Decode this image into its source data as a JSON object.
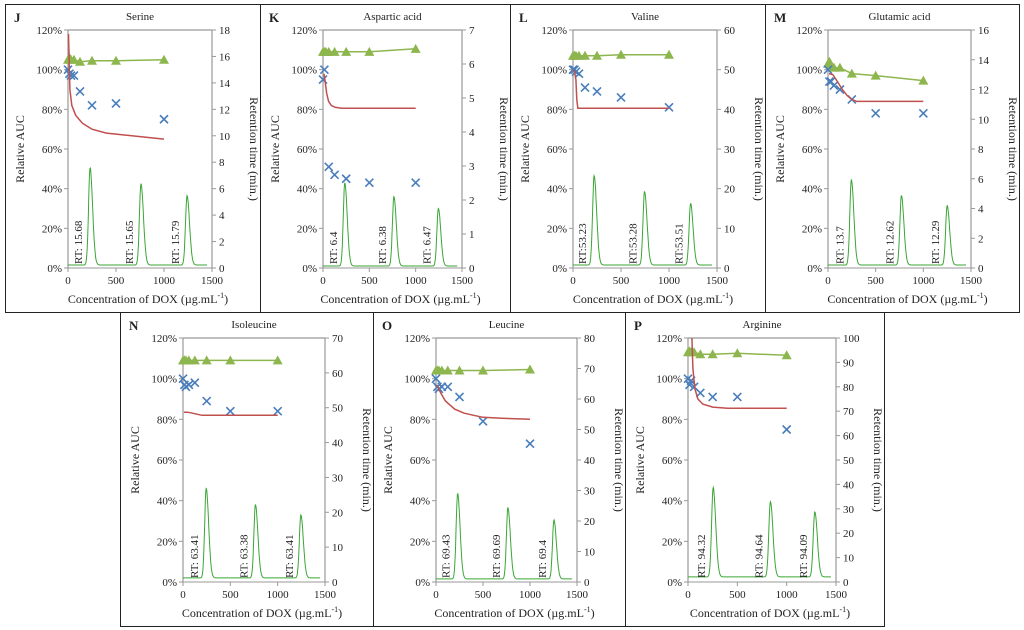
{
  "figure": {
    "shared": {
      "xlabel": "Concentration of DOX (µg.mL",
      "xlabel_sup": "-1",
      "xlabel_close": ")",
      "ylabel_left": "Relative AUC",
      "ylabel_right": "Retention time (min.)",
      "x_ticks": [
        "0",
        "500",
        "1000",
        "1500"
      ],
      "y_left_ticks": [
        "0%",
        "20%",
        "40%",
        "60%",
        "80%",
        "100%",
        "120%"
      ],
      "colors": {
        "triangles": "#8db64e",
        "triangle_line": "#8db64e",
        "crosses": "#4a7ebb",
        "fit_line": "#c0504d",
        "chromatogram": "#3aa635",
        "axis": "#999999"
      }
    }
  },
  "chart_data": [
    {
      "type": "scatter",
      "panel": "J",
      "title": "Serine",
      "xlabel": "Concentration of DOX (µg.mL-1)",
      "ylabel": "Relative AUC",
      "ylabel2": "Retention time (min.)",
      "xlim": [
        0,
        1500
      ],
      "ylim": [
        0,
        120
      ],
      "y2lim": [
        0,
        18
      ],
      "y2_ticks": [
        "0",
        "2",
        "4",
        "6",
        "8",
        "10",
        "12",
        "14",
        "16",
        "18"
      ],
      "series": [
        {
          "name": "retention time",
          "marker": "triangle",
          "x": [
            0,
            15,
            31,
            62,
            125,
            250,
            500,
            1000
          ],
          "y": [
            105,
            106,
            105,
            105,
            104,
            104.5,
            104.5,
            105
          ]
        },
        {
          "name": "relative AUC",
          "marker": "x",
          "x": [
            0,
            15,
            31,
            62,
            125,
            250,
            500,
            1000
          ],
          "y": [
            100,
            98,
            97,
            97,
            89,
            82,
            83,
            75
          ]
        },
        {
          "name": "fit",
          "marker": "line",
          "x": [
            5,
            20,
            40,
            80,
            150,
            250,
            400,
            600,
            800,
            1000
          ],
          "y": [
            118,
            90,
            82,
            77,
            73,
            70,
            68,
            67,
            66,
            65
          ]
        }
      ],
      "peaks": [
        {
          "x": 230,
          "h": 49,
          "label": "RT: 15.68"
        },
        {
          "x": 760,
          "h": 41,
          "label": "RT: 15.65"
        },
        {
          "x": 1240,
          "h": 35,
          "label": "RT: 15.79"
        }
      ],
      "baseline": 1.5
    },
    {
      "type": "scatter",
      "panel": "K",
      "title": "Aspartic acid",
      "xlabel": "Concentration of DOX (µg.mL-1)",
      "ylabel": "Relative AUC",
      "ylabel2": "Retention time (min.)",
      "xlim": [
        0,
        1500
      ],
      "ylim": [
        0,
        120
      ],
      "y2lim": [
        0,
        7
      ],
      "y2_ticks": [
        "0",
        "1",
        "2",
        "3",
        "4",
        "5",
        "6",
        "7"
      ],
      "series": [
        {
          "name": "retention time",
          "marker": "triangle",
          "x": [
            0,
            15,
            31,
            62,
            125,
            250,
            500,
            1000
          ],
          "y": [
            109,
            109,
            109,
            109,
            109,
            109,
            109,
            110.5
          ]
        },
        {
          "name": "relative AUC",
          "marker": "x",
          "x": [
            0,
            15,
            62,
            125,
            250,
            500,
            1000
          ],
          "y": [
            95,
            100,
            51,
            47,
            45,
            43,
            43
          ]
        },
        {
          "name": "fit",
          "marker": "line",
          "x": [
            10,
            20,
            40,
            60,
            90,
            130,
            200,
            400,
            700,
            1000
          ],
          "y": [
            98,
            95,
            88,
            84,
            82,
            81,
            80.5,
            80.5,
            80.5,
            80.5
          ]
        }
      ],
      "peaks": [
        {
          "x": 235,
          "h": 42,
          "label": "RT: 6.4"
        },
        {
          "x": 765,
          "h": 35,
          "label": "RT: 6.38"
        },
        {
          "x": 1245,
          "h": 29,
          "label": "RT: 6.47"
        }
      ],
      "baseline": 1
    },
    {
      "type": "scatter",
      "panel": "L",
      "title": "Valine",
      "xlabel": "Concentration of DOX (µg.mL-1)",
      "ylabel": "Relative AUC",
      "ylabel2": "Retention time (min.)",
      "xlim": [
        0,
        1500
      ],
      "ylim": [
        0,
        120
      ],
      "y2lim": [
        0,
        60
      ],
      "y2_ticks": [
        "0",
        "10",
        "20",
        "30",
        "40",
        "50",
        "60"
      ],
      "series": [
        {
          "name": "retention time",
          "marker": "triangle",
          "x": [
            0,
            15,
            31,
            62,
            125,
            250,
            500,
            1000
          ],
          "y": [
            107,
            107,
            107,
            107,
            107,
            107,
            107.5,
            107.5
          ]
        },
        {
          "name": "relative AUC",
          "marker": "x",
          "x": [
            0,
            15,
            31,
            62,
            125,
            250,
            500,
            1000
          ],
          "y": [
            100,
            100,
            99,
            98,
            91,
            89,
            86,
            81
          ]
        },
        {
          "name": "fit",
          "marker": "line",
          "x": [
            10,
            20,
            30,
            40,
            50,
            100,
            300,
            600,
            1000
          ],
          "y": [
            100,
            98,
            95,
            85,
            80.5,
            80.5,
            80.5,
            80.5,
            80.5
          ]
        }
      ],
      "peaks": [
        {
          "x": 220,
          "h": 45,
          "label": "RT:53.23"
        },
        {
          "x": 745,
          "h": 37,
          "label": "RT:53.28"
        },
        {
          "x": 1225,
          "h": 31,
          "label": "RT:53.51"
        }
      ],
      "baseline": 1.5
    },
    {
      "type": "scatter",
      "panel": "M",
      "title": "Glutamic acid",
      "xlabel": "Concentration of DOX (µg.mL-1)",
      "ylabel": "Relative AUC",
      "ylabel2": "Retention time (min.)",
      "xlim": [
        0,
        1500
      ],
      "ylim": [
        0,
        120
      ],
      "y2lim": [
        0,
        16
      ],
      "y2_ticks": [
        "0",
        "2",
        "4",
        "6",
        "8",
        "10",
        "12",
        "14",
        "16"
      ],
      "series": [
        {
          "name": "retention time",
          "marker": "triangle",
          "x": [
            0,
            15,
            31,
            62,
            125,
            250,
            500,
            1000
          ],
          "y": [
            103,
            104,
            102,
            101,
            101,
            98,
            97,
            94.5
          ]
        },
        {
          "name": "relative AUC",
          "marker": "x",
          "x": [
            0,
            15,
            31,
            62,
            125,
            250,
            500,
            1000
          ],
          "y": [
            100,
            94,
            94,
            92,
            90,
            85,
            78,
            78
          ]
        },
        {
          "name": "fit",
          "marker": "line",
          "x": [
            10,
            50,
            100,
            150,
            200,
            250,
            300,
            500,
            1000
          ],
          "y": [
            98,
            97.5,
            94,
            90,
            87,
            85,
            84,
            84,
            84
          ]
        }
      ],
      "peaks": [
        {
          "x": 245,
          "h": 43,
          "label": "RT: 13.7"
        },
        {
          "x": 770,
          "h": 35,
          "label": "RT: 12.62"
        },
        {
          "x": 1250,
          "h": 30,
          "label": "RT: 12.29"
        }
      ],
      "baseline": 1.5
    },
    {
      "type": "scatter",
      "panel": "N",
      "title": "Isoleucine",
      "xlabel": "Concentration of DOX (µg.mL-1)",
      "ylabel": "Relative AUC",
      "ylabel2": "Retention time (min.)",
      "xlim": [
        0,
        1500
      ],
      "ylim": [
        0,
        120
      ],
      "y2lim": [
        0,
        70
      ],
      "y2_ticks": [
        "0",
        "10",
        "20",
        "30",
        "40",
        "50",
        "60",
        "70"
      ],
      "series": [
        {
          "name": "retention time",
          "marker": "triangle",
          "x": [
            0,
            15,
            31,
            62,
            125,
            250,
            500,
            1000
          ],
          "y": [
            109,
            109,
            109,
            109,
            109,
            109,
            109,
            109
          ]
        },
        {
          "name": "relative AUC",
          "marker": "x",
          "x": [
            0,
            15,
            31,
            62,
            125,
            250,
            500,
            1000
          ],
          "y": [
            100,
            97,
            96,
            97,
            98,
            89,
            84,
            84
          ]
        },
        {
          "name": "fit",
          "marker": "line",
          "x": [
            10,
            50,
            100,
            200,
            300,
            500,
            1000
          ],
          "y": [
            83.5,
            83.5,
            83,
            82,
            82,
            82,
            82
          ]
        }
      ],
      "peaks": [
        {
          "x": 245,
          "h": 44,
          "label": "RT: 63.41"
        },
        {
          "x": 765,
          "h": 36,
          "label": "RT: 63.38"
        },
        {
          "x": 1245,
          "h": 31,
          "label": "RT: 63.41"
        }
      ],
      "baseline": 2
    },
    {
      "type": "scatter",
      "panel": "O",
      "title": "Leucine",
      "xlabel": "Concentration of DOX (µg.mL-1)",
      "ylabel": "Relative AUC",
      "ylabel2": "Retention time (min.)",
      "xlim": [
        0,
        1500
      ],
      "ylim": [
        0,
        120
      ],
      "y2lim": [
        0,
        80
      ],
      "y2_ticks": [
        "0",
        "10",
        "20",
        "30",
        "40",
        "50",
        "60",
        "70",
        "80"
      ],
      "series": [
        {
          "name": "retention time",
          "marker": "triangle",
          "x": [
            0,
            15,
            31,
            62,
            125,
            250,
            500,
            1000
          ],
          "y": [
            104,
            104,
            104,
            104,
            104,
            104,
            104,
            104.5
          ]
        },
        {
          "name": "relative AUC",
          "marker": "x",
          "x": [
            0,
            15,
            31,
            62,
            125,
            250,
            500,
            1000
          ],
          "y": [
            100,
            96,
            95,
            96,
            96,
            91,
            79,
            68
          ]
        },
        {
          "name": "fit",
          "marker": "line",
          "x": [
            10,
            50,
            100,
            200,
            300,
            400,
            500,
            700,
            1000
          ],
          "y": [
            97,
            93,
            89,
            85,
            83,
            82,
            81,
            80.5,
            80
          ]
        }
      ],
      "peaks": [
        {
          "x": 230,
          "h": 42,
          "label": "RT: 69.43"
        },
        {
          "x": 765,
          "h": 35,
          "label": "RT: 69.69"
        },
        {
          "x": 1255,
          "h": 29,
          "label": "RT: 69.4"
        }
      ],
      "baseline": 1.5
    },
    {
      "type": "scatter",
      "panel": "P",
      "title": "Arginine",
      "xlabel": "Concentration of DOX (µg.mL-1)",
      "ylabel": "Relative AUC",
      "ylabel2": "Retention time (min.)",
      "xlim": [
        0,
        1500
      ],
      "ylim": [
        0,
        120
      ],
      "y2lim": [
        0,
        100
      ],
      "y2_ticks": [
        "0",
        "10",
        "20",
        "30",
        "40",
        "50",
        "60",
        "70",
        "80",
        "90",
        "100"
      ],
      "series": [
        {
          "name": "retention time",
          "marker": "triangle",
          "x": [
            0,
            15,
            31,
            62,
            125,
            250,
            500,
            1000
          ],
          "y": [
            113,
            113.5,
            113,
            113,
            112,
            112,
            112.5,
            111.5
          ]
        },
        {
          "name": "relative AUC",
          "marker": "x",
          "x": [
            0,
            15,
            31,
            62,
            125,
            250,
            500,
            1000
          ],
          "y": [
            100,
            97,
            99,
            96,
            93,
            91,
            91,
            75
          ]
        },
        {
          "name": "fit",
          "marker": "line",
          "x": [
            40,
            50,
            70,
            100,
            150,
            250,
            400,
            700,
            1000
          ],
          "y": [
            120,
            105,
            95,
            90,
            87.5,
            86,
            85.5,
            85.5,
            85.5
          ]
        }
      ],
      "peaks": [
        {
          "x": 255,
          "h": 44,
          "label": "RT: 94.32"
        },
        {
          "x": 835,
          "h": 37,
          "label": "RT: 94.64"
        },
        {
          "x": 1285,
          "h": 32,
          "label": "RT: 94.09"
        }
      ],
      "baseline": 2.5
    }
  ]
}
